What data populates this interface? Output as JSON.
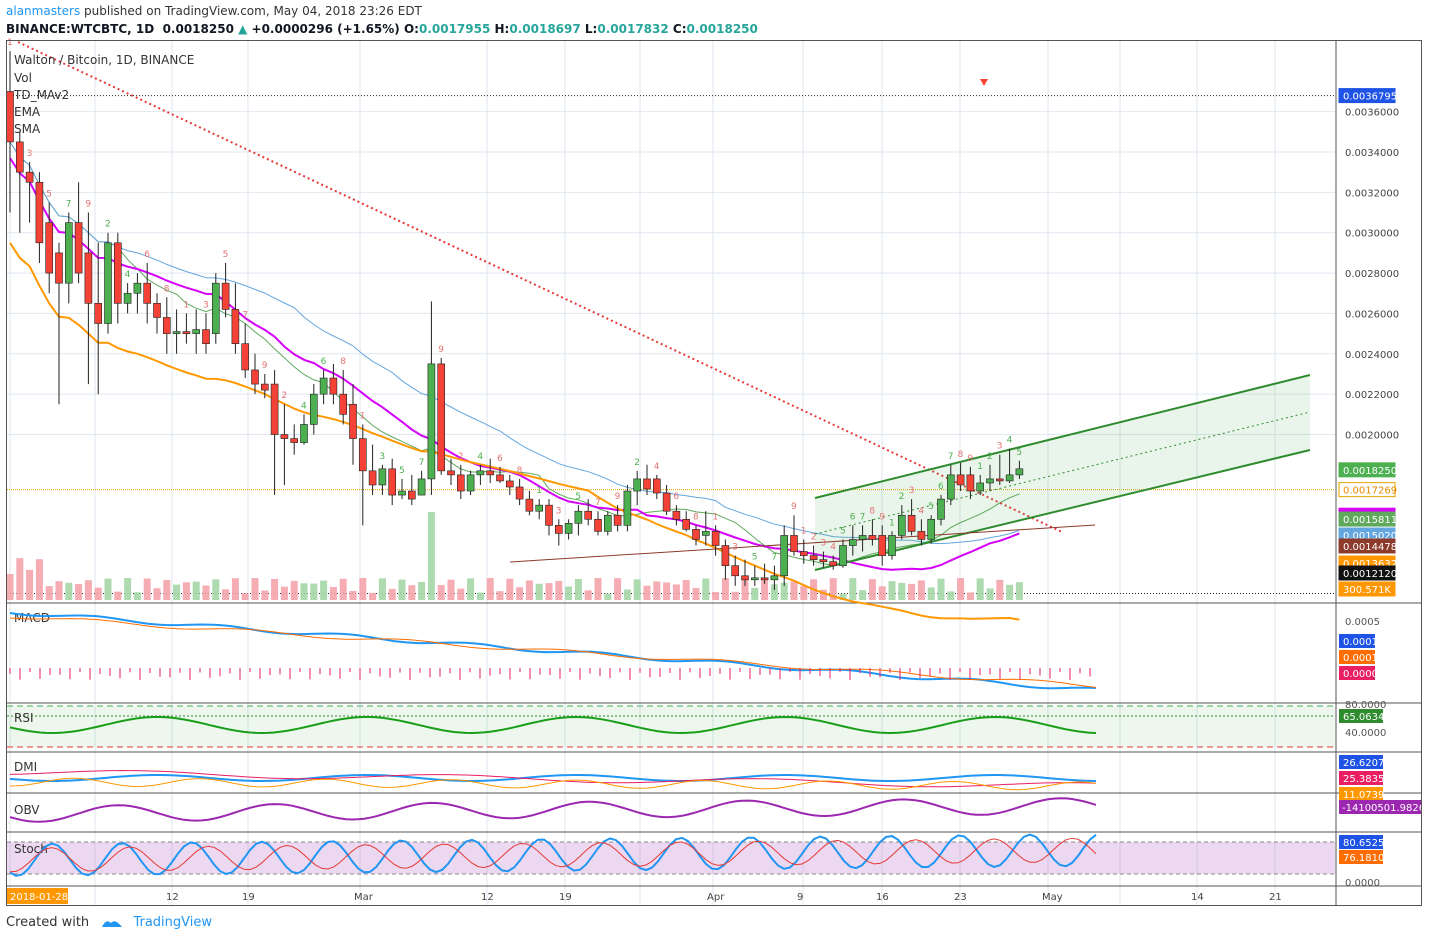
{
  "header": {
    "user": "alanmasters",
    "published": "published on TradingView.com, May 04, 2018 23:26 EDT",
    "symbol_line": "BINANCE:WTCBTC, 1D",
    "last": "0.0018250",
    "change": "+0.0000296 (+1.65%)",
    "o_label": "O:",
    "o": "0.0017955",
    "h_label": "H:",
    "h": "0.0018697",
    "l_label": "L:",
    "l": "0.0017832",
    "c_label": "C:",
    "c": "0.0018250"
  },
  "legend": {
    "title": "Walton / Bitcoin, 1D, BINANCE",
    "items": [
      "Vol",
      "TD_MAv2",
      "EMA",
      "SMA"
    ]
  },
  "footer": {
    "created": "Created with",
    "brand": "TradingView"
  },
  "colors": {
    "up": "#4caf50",
    "down": "#f44336",
    "ema": "#d500f9",
    "sma_blue": "#64a6e0",
    "sma_green": "#5fa85c",
    "orange": "#ff9800",
    "trend": "#e53935",
    "channel": "#2e8b2e"
  },
  "chart_data": {
    "type": "candlestick",
    "title": "Walton / Bitcoin, 1D, BINANCE",
    "y_axis": {
      "ticks": [
        "0.0036000",
        "0.0034000",
        "0.0032000",
        "0.0030000",
        "0.0028000",
        "0.0026000",
        "0.0024000",
        "0.0022000",
        "0.0020000"
      ],
      "ylim": [
        0.00118,
        0.00395
      ]
    },
    "price_tags": [
      {
        "value": "0.0036795",
        "color": "#1e53e5",
        "text_color": "#ffffff"
      },
      {
        "value": "0.0018250",
        "color": "#4caf50",
        "text_color": "#ffffff"
      },
      {
        "value": "0.0017269",
        "color": "#ffffff",
        "text_color": "#e68a00",
        "border": "#e6a100"
      },
      {
        "value": "0.0016002",
        "color": "#d500f9",
        "text_color": "#ffffff"
      },
      {
        "value": "0.0015811",
        "color": "#5fa85c",
        "text_color": "#ffffff"
      },
      {
        "value": "0.0015020",
        "color": "#64a6e0",
        "text_color": "#ffffff"
      },
      {
        "value": "0.0014478",
        "color": "#8b3a2b",
        "text_color": "#ffffff"
      },
      {
        "value": "0.0013632",
        "color": "#ff9800",
        "text_color": "#ffffff"
      },
      {
        "value": "0.0012120",
        "color": "#111111",
        "text_color": "#ffffff"
      },
      {
        "value": "300.571K",
        "color": "#ff9800",
        "text_color": "#ffffff"
      }
    ],
    "x_axis": {
      "labels": [
        "2018-01-28",
        "12",
        "19",
        "Mar",
        "12",
        "19",
        "Apr",
        "9",
        "16",
        "23",
        "May",
        "14",
        "21"
      ]
    },
    "candles": [
      [
        0.0037,
        0.0039,
        0.0031,
        0.00345
      ],
      [
        0.00345,
        0.0035,
        0.003,
        0.0033
      ],
      [
        0.0033,
        0.00335,
        0.00305,
        0.00325
      ],
      [
        0.00325,
        0.0033,
        0.00285,
        0.00295
      ],
      [
        0.00305,
        0.00315,
        0.0027,
        0.0028
      ],
      [
        0.0029,
        0.00295,
        0.00215,
        0.00275
      ],
      [
        0.00275,
        0.0031,
        0.00265,
        0.00305
      ],
      [
        0.00305,
        0.00325,
        0.00275,
        0.0028
      ],
      [
        0.0029,
        0.0031,
        0.00225,
        0.00265
      ],
      [
        0.00265,
        0.00295,
        0.0022,
        0.00255
      ],
      [
        0.00255,
        0.003,
        0.0025,
        0.00295
      ],
      [
        0.00295,
        0.003,
        0.00255,
        0.00265
      ],
      [
        0.00265,
        0.00275,
        0.0026,
        0.0027
      ],
      [
        0.0027,
        0.0028,
        0.0026,
        0.00275
      ],
      [
        0.00275,
        0.00285,
        0.00255,
        0.00265
      ],
      [
        0.00265,
        0.0027,
        0.0025,
        0.00258
      ],
      [
        0.00258,
        0.00268,
        0.0024,
        0.0025
      ],
      [
        0.0025,
        0.00262,
        0.0024,
        0.00251
      ],
      [
        0.00251,
        0.0026,
        0.00245,
        0.0025
      ],
      [
        0.0025,
        0.00262,
        0.0024,
        0.00252
      ],
      [
        0.00252,
        0.0026,
        0.0024,
        0.00245
      ],
      [
        0.0025,
        0.0028,
        0.00245,
        0.00275
      ],
      [
        0.00275,
        0.00285,
        0.00258,
        0.00262
      ],
      [
        0.00262,
        0.00275,
        0.0024,
        0.00245
      ],
      [
        0.00245,
        0.00255,
        0.00228,
        0.00232
      ],
      [
        0.00232,
        0.0024,
        0.0022,
        0.00225
      ],
      [
        0.00225,
        0.0023,
        0.00218,
        0.00222
      ],
      [
        0.00225,
        0.00232,
        0.0017,
        0.002
      ],
      [
        0.002,
        0.00215,
        0.00175,
        0.00198
      ],
      [
        0.00198,
        0.00205,
        0.0019,
        0.00196
      ],
      [
        0.00196,
        0.0021,
        0.00195,
        0.00205
      ],
      [
        0.00205,
        0.00225,
        0.002,
        0.0022
      ],
      [
        0.0022,
        0.00232,
        0.00215,
        0.00228
      ],
      [
        0.00228,
        0.00235,
        0.00215,
        0.0022
      ],
      [
        0.0022,
        0.00232,
        0.00205,
        0.0021
      ],
      [
        0.00215,
        0.00225,
        0.00185,
        0.00198
      ],
      [
        0.00198,
        0.00205,
        0.00155,
        0.00182
      ],
      [
        0.00182,
        0.00195,
        0.0017,
        0.00175
      ],
      [
        0.00175,
        0.00185,
        0.0017,
        0.00183
      ],
      [
        0.00183,
        0.00188,
        0.00165,
        0.0017
      ],
      [
        0.0017,
        0.00178,
        0.00168,
        0.00172
      ],
      [
        0.00172,
        0.0018,
        0.00165,
        0.00168
      ],
      [
        0.0017,
        0.00182,
        0.0017,
        0.00178
      ],
      [
        0.00178,
        0.00266,
        0.0017,
        0.00235
      ],
      [
        0.00235,
        0.00238,
        0.0018,
        0.00182
      ],
      [
        0.00182,
        0.00188,
        0.00175,
        0.0018
      ],
      [
        0.0018,
        0.00185,
        0.00168,
        0.00172
      ],
      [
        0.00172,
        0.00182,
        0.0017,
        0.0018
      ],
      [
        0.0018,
        0.00185,
        0.00175,
        0.00182
      ],
      [
        0.00182,
        0.00188,
        0.00176,
        0.0018
      ],
      [
        0.0018,
        0.00184,
        0.00176,
        0.00177
      ],
      [
        0.00177,
        0.0018,
        0.0017,
        0.00174
      ],
      [
        0.00174,
        0.00178,
        0.00165,
        0.00168
      ],
      [
        0.00168,
        0.00172,
        0.0016,
        0.00162
      ],
      [
        0.00162,
        0.00168,
        0.00158,
        0.00165
      ],
      [
        0.00165,
        0.00168,
        0.0015,
        0.00155
      ],
      [
        0.00155,
        0.00158,
        0.00145,
        0.00151
      ],
      [
        0.00151,
        0.00158,
        0.00148,
        0.00156
      ],
      [
        0.00156,
        0.00165,
        0.0015,
        0.00162
      ],
      [
        0.00162,
        0.00168,
        0.00155,
        0.00158
      ],
      [
        0.00158,
        0.00162,
        0.0015,
        0.00152
      ],
      [
        0.00152,
        0.00162,
        0.0015,
        0.0016
      ],
      [
        0.0016,
        0.00165,
        0.00152,
        0.00155
      ],
      [
        0.00155,
        0.00175,
        0.00152,
        0.00172
      ],
      [
        0.00172,
        0.00182,
        0.00165,
        0.00178
      ],
      [
        0.00178,
        0.00185,
        0.0017,
        0.00173
      ],
      [
        0.00178,
        0.0018,
        0.00168,
        0.00171
      ],
      [
        0.00171,
        0.00175,
        0.0016,
        0.00162
      ],
      [
        0.00162,
        0.00165,
        0.00155,
        0.00158
      ],
      [
        0.00158,
        0.00162,
        0.00152,
        0.00153
      ],
      [
        0.00153,
        0.00155,
        0.00145,
        0.00148
      ],
      [
        0.0015,
        0.00162,
        0.00145,
        0.00152
      ],
      [
        0.00152,
        0.00155,
        0.0014,
        0.00145
      ],
      [
        0.00145,
        0.00148,
        0.00128,
        0.00135
      ],
      [
        0.00135,
        0.0014,
        0.00125,
        0.0013
      ],
      [
        0.0013,
        0.00138,
        0.00125,
        0.00128
      ],
      [
        0.00128,
        0.00135,
        0.00125,
        0.00129
      ],
      [
        0.00129,
        0.00136,
        0.00126,
        0.00128
      ],
      [
        0.00128,
        0.00135,
        0.00123,
        0.0013
      ],
      [
        0.0013,
        0.00155,
        0.00125,
        0.0015
      ],
      [
        0.0015,
        0.0016,
        0.0014,
        0.00142
      ],
      [
        0.00142,
        0.00148,
        0.00136,
        0.0014
      ],
      [
        0.0014,
        0.00145,
        0.00135,
        0.00138
      ],
      [
        0.00138,
        0.00142,
        0.00134,
        0.00137
      ],
      [
        0.00137,
        0.0014,
        0.00133,
        0.00135
      ],
      [
        0.00135,
        0.00148,
        0.00134,
        0.00145
      ],
      [
        0.00145,
        0.00155,
        0.0014,
        0.00148
      ],
      [
        0.00148,
        0.00155,
        0.00142,
        0.0015
      ],
      [
        0.0015,
        0.00158,
        0.00145,
        0.00148
      ],
      [
        0.0015,
        0.00155,
        0.00135,
        0.0014
      ],
      [
        0.0014,
        0.00152,
        0.00138,
        0.0015
      ],
      [
        0.0015,
        0.00165,
        0.00148,
        0.0016
      ],
      [
        0.0016,
        0.00168,
        0.0015,
        0.00152
      ],
      [
        0.00152,
        0.00158,
        0.00145,
        0.00148
      ],
      [
        0.00148,
        0.0016,
        0.00146,
        0.00158
      ],
      [
        0.00158,
        0.0017,
        0.00155,
        0.00168
      ],
      [
        0.00168,
        0.00185,
        0.00165,
        0.0018
      ],
      [
        0.0018,
        0.00186,
        0.00172,
        0.00175
      ],
      [
        0.0018,
        0.00184,
        0.00168,
        0.00172
      ],
      [
        0.00172,
        0.0018,
        0.0017,
        0.00176
      ],
      [
        0.00176,
        0.00185,
        0.00172,
        0.00178
      ],
      [
        0.00178,
        0.0019,
        0.00175,
        0.00177
      ],
      [
        0.00177,
        0.00193,
        0.00176,
        0.0018
      ],
      [
        0.0018,
        0.00187,
        0.00178,
        0.00183
      ]
    ],
    "indicators": [
      {
        "name": "MACD",
        "values": [
          "0.0001",
          "0.0001",
          "0.0000"
        ],
        "ticks": [
          "0.0005"
        ]
      },
      {
        "name": "RSI",
        "values": [
          "65.0634"
        ],
        "ticks": [
          "80.0000",
          "40.0000"
        ]
      },
      {
        "name": "DMI",
        "values": [
          "26.6207",
          "25.3835",
          "11.0739"
        ]
      },
      {
        "name": "OBV",
        "values": [
          "-14100501.9826"
        ]
      },
      {
        "name": "Stoch",
        "values": [
          "80.6525",
          "76.1810"
        ],
        "ticks": [
          "0.0000"
        ]
      }
    ]
  }
}
